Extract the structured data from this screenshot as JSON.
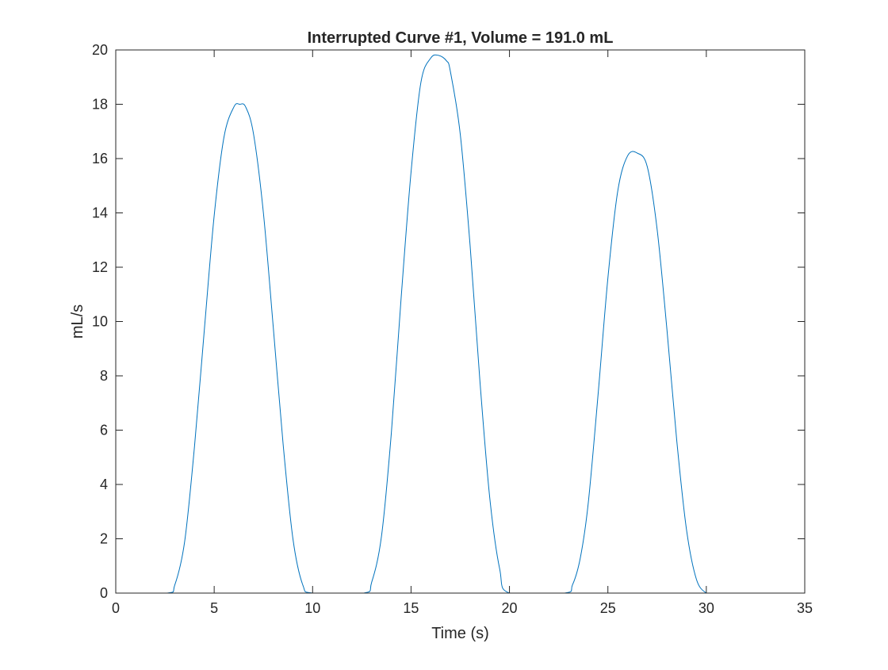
{
  "chart_data": {
    "type": "line",
    "title": "Interrupted Curve #1, Volume = 191.0 mL",
    "xlabel": "Time (s)",
    "ylabel": "mL/s",
    "xlim": [
      0,
      35
    ],
    "ylim": [
      0,
      20
    ],
    "xticks": [
      0,
      5,
      10,
      15,
      20,
      25,
      30,
      35
    ],
    "yticks": [
      0,
      2,
      4,
      6,
      8,
      10,
      12,
      14,
      16,
      18,
      20
    ],
    "xtick_labels": [
      "0",
      "5",
      "10",
      "15",
      "20",
      "25",
      "30",
      "35"
    ],
    "ytick_labels": [
      "0",
      "2",
      "4",
      "6",
      "8",
      "10",
      "12",
      "14",
      "16",
      "18",
      "20"
    ],
    "grid": false,
    "series": [
      {
        "color": "#0072BD",
        "x": [
          0,
          2.6,
          3.0,
          3.5,
          4.0,
          4.5,
          5.0,
          5.5,
          6.0,
          6.3,
          6.6,
          7.0,
          7.5,
          8.0,
          8.5,
          9.0,
          9.5,
          10.0,
          12.6,
          13.0,
          13.5,
          14.0,
          14.5,
          15.0,
          15.5,
          16.0,
          16.4,
          16.8,
          17.0,
          17.5,
          18.0,
          18.5,
          19.0,
          19.5,
          20.0,
          22.8,
          23.2,
          23.6,
          24.0,
          24.5,
          25.0,
          25.5,
          26.0,
          26.5,
          27.0,
          27.5,
          28.0,
          28.5,
          29.0,
          29.5,
          30.0,
          30.3,
          35
        ],
        "y": [
          0,
          0,
          0.3,
          1.9,
          5.4,
          9.7,
          13.9,
          16.8,
          17.9,
          18.0,
          17.9,
          16.9,
          14.0,
          9.8,
          5.5,
          2.0,
          0.3,
          0,
          0,
          0.4,
          2.1,
          5.9,
          10.9,
          15.5,
          18.8,
          19.7,
          19.8,
          19.6,
          19.2,
          16.9,
          12.8,
          7.8,
          3.5,
          0.9,
          0,
          0,
          0.3,
          1.3,
          3.3,
          7.3,
          11.6,
          14.8,
          16.1,
          16.2,
          15.7,
          13.4,
          9.7,
          5.6,
          2.3,
          0.5,
          0,
          0,
          0
        ]
      }
    ]
  }
}
